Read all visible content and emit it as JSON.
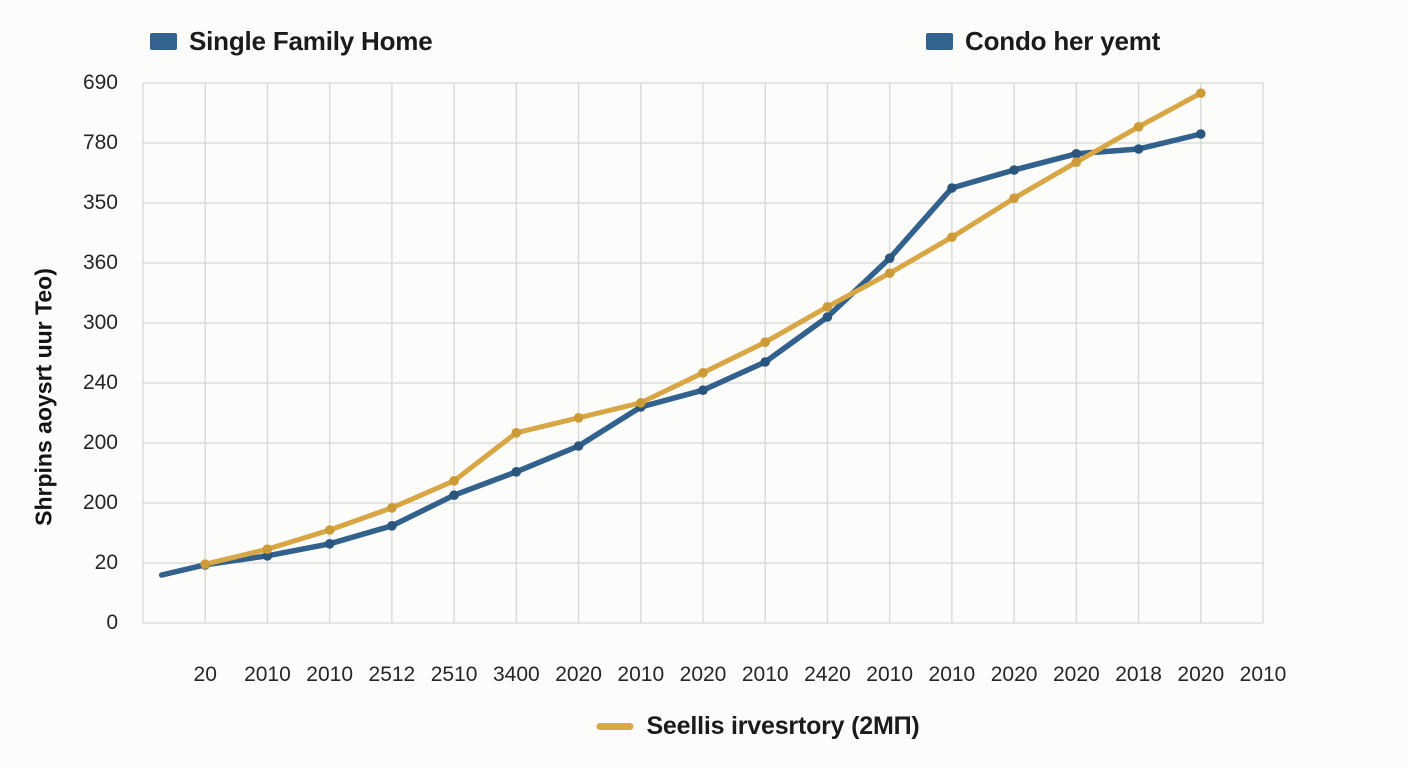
{
  "chart_data": {
    "type": "line",
    "title": "",
    "y_axis_label": "Shrpins aoysrt uur Teo)",
    "x_axis_label": "",
    "y_tick_labels_top_to_bottom": [
      "690",
      "780",
      "350",
      "360",
      "300",
      "240",
      "200",
      "200",
      "20",
      "0"
    ],
    "x_tick_labels": [
      "20",
      "2010",
      "2010",
      "2512",
      "2510",
      "3400",
      "2020",
      "2010",
      "2020",
      "2010",
      "2420",
      "2010",
      "2010",
      "2020",
      "2020",
      "2018",
      "2020",
      "2010"
    ],
    "grid": "on",
    "grid_color": "#d7d7d4",
    "x_unit": "gridline-index (0-18 across plot)",
    "y_unit": "gridline-units above bottom axis (0-9)",
    "legend_top": [
      {
        "label": "Single Family Home",
        "swatch_color": "#35638f"
      },
      {
        "label": "Condo her yemt",
        "swatch_color": "#35638f"
      }
    ],
    "legend_bottom": [
      {
        "label": "Seellis irvesrtory (2MΠ)",
        "swatch_color": "#d9a843"
      }
    ],
    "series": [
      {
        "name": "blue-line",
        "color": "#31618c",
        "marker_color": "#2a567e",
        "points": [
          [
            0.3,
            0.8
          ],
          [
            1,
            0.97
          ],
          [
            2,
            1.12
          ],
          [
            3,
            1.32
          ],
          [
            4,
            1.62
          ],
          [
            5,
            2.13
          ],
          [
            6,
            2.52
          ],
          [
            7,
            2.95
          ],
          [
            8,
            3.6
          ],
          [
            9,
            3.88
          ],
          [
            10,
            4.35
          ],
          [
            11,
            5.1
          ],
          [
            12,
            6.08
          ],
          [
            13,
            7.25
          ],
          [
            14,
            7.55
          ],
          [
            15,
            7.82
          ],
          [
            16,
            7.9
          ],
          [
            17,
            8.15
          ]
        ]
      },
      {
        "name": "gold-line",
        "color": "#d8a644",
        "marker_color": "#cc9b38",
        "points": [
          [
            1,
            0.98
          ],
          [
            2,
            1.23
          ],
          [
            3,
            1.55
          ],
          [
            4,
            1.92
          ],
          [
            5,
            2.37
          ],
          [
            6,
            3.17
          ],
          [
            7,
            3.42
          ],
          [
            8,
            3.67
          ],
          [
            9,
            4.17
          ],
          [
            10,
            4.68
          ],
          [
            11,
            5.27
          ],
          [
            12,
            5.83
          ],
          [
            13,
            6.43
          ],
          [
            14,
            7.08
          ],
          [
            15,
            7.68
          ],
          [
            16,
            8.27
          ],
          [
            17,
            8.83
          ]
        ]
      }
    ]
  }
}
